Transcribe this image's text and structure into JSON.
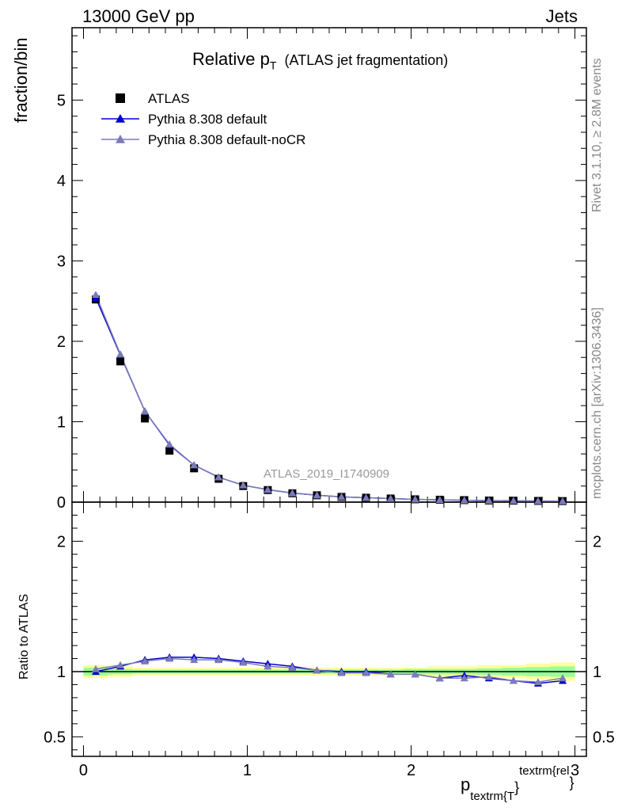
{
  "header": {
    "left": "13000 GeV pp",
    "right": "Jets"
  },
  "title": {
    "main": "Relative p",
    "sub": "T",
    "detail": "(ATLAS jet fragmentation)"
  },
  "side_labels": {
    "rivet": "Rivet 3.1.10, ≥ 2.8M events",
    "mcplots": "mcplots.cern.ch [arXiv:1306.3436]"
  },
  "watermark": "ATLAS_2019_I1740909",
  "axes": {
    "ylabel_main": "fraction/bin",
    "ylabel_ratio": "Ratio to ATLAS",
    "xlabel_p": "p",
    "xlabel_sub": "textrm{T",
    "xlabel_brace": "}",
    "xlabel_sup": "textrm{rel",
    "xlabel_sup_brace": "}"
  },
  "colors": {
    "data": "#000000",
    "default": "#0000cc",
    "noCR": "#7b7bb9",
    "band_yellow": "#ffff99",
    "band_green": "#99ff99"
  },
  "chart_data": {
    "type": "scatter",
    "xlim": [
      -0.07,
      3.07
    ],
    "main": {
      "ylim": [
        0,
        5.9
      ],
      "yticks": [
        0,
        1,
        2,
        3,
        4,
        5
      ],
      "ytick_labels": [
        "0",
        "1",
        "2",
        "3",
        "4",
        "5"
      ]
    },
    "ratio": {
      "ylim": [
        0.35,
        2.3
      ],
      "yticks": [
        0.5,
        1,
        2
      ],
      "ytick_labels": [
        "0.5",
        "1",
        "2"
      ]
    },
    "xticks": [
      0,
      1,
      2,
      3
    ],
    "xtick_labels": [
      "0",
      "1",
      "2",
      "3"
    ],
    "x": [
      0.075,
      0.225,
      0.375,
      0.525,
      0.675,
      0.825,
      0.975,
      1.125,
      1.275,
      1.425,
      1.575,
      1.725,
      1.875,
      2.025,
      2.175,
      2.325,
      2.475,
      2.625,
      2.775,
      2.925
    ],
    "series": [
      {
        "name": "ATLAS",
        "marker": "square",
        "values": [
          2.52,
          1.75,
          1.04,
          0.64,
          0.42,
          0.29,
          0.2,
          0.15,
          0.11,
          0.085,
          0.065,
          0.055,
          0.045,
          0.035,
          0.03,
          0.025,
          0.02,
          0.018,
          0.015,
          0.013
        ]
      },
      {
        "name": "Pythia 8.308 default",
        "marker": "triangle",
        "values": [
          2.54,
          1.83,
          1.13,
          0.71,
          0.46,
          0.31,
          0.21,
          0.155,
          0.113,
          0.086,
          0.065,
          0.055,
          0.044,
          0.034,
          0.028,
          0.024,
          0.019,
          0.017,
          0.014,
          0.012
        ],
        "ratio": [
          1.0,
          1.04,
          1.09,
          1.11,
          1.11,
          1.1,
          1.08,
          1.06,
          1.04,
          1.01,
          1.0,
          1.0,
          0.98,
          0.98,
          0.95,
          0.97,
          0.95,
          0.93,
          0.91,
          0.93
        ]
      },
      {
        "name": "Pythia 8.308 default-noCR",
        "marker": "triangle",
        "values": [
          2.58,
          1.84,
          1.13,
          0.72,
          0.46,
          0.31,
          0.21,
          0.155,
          0.112,
          0.086,
          0.065,
          0.054,
          0.044,
          0.034,
          0.028,
          0.024,
          0.019,
          0.017,
          0.014,
          0.012
        ],
        "ratio": [
          1.02,
          1.05,
          1.08,
          1.1,
          1.09,
          1.09,
          1.07,
          1.04,
          1.03,
          1.01,
          0.99,
          0.99,
          0.98,
          0.98,
          0.95,
          0.95,
          0.96,
          0.93,
          0.92,
          0.95
        ]
      }
    ],
    "ratio_band_yellow_halfwidth": [
      0.05,
      0.04,
      0.03,
      0.03,
      0.03,
      0.03,
      0.03,
      0.03,
      0.03,
      0.03,
      0.03,
      0.03,
      0.03,
      0.03,
      0.04,
      0.04,
      0.05,
      0.05,
      0.06,
      0.07
    ],
    "ratio_band_green_halfwidth": [
      0.03,
      0.02,
      0.015,
      0.015,
      0.015,
      0.015,
      0.015,
      0.015,
      0.015,
      0.015,
      0.015,
      0.015,
      0.015,
      0.02,
      0.02,
      0.02,
      0.025,
      0.03,
      0.035,
      0.04
    ],
    "legend_position": "top-left"
  }
}
